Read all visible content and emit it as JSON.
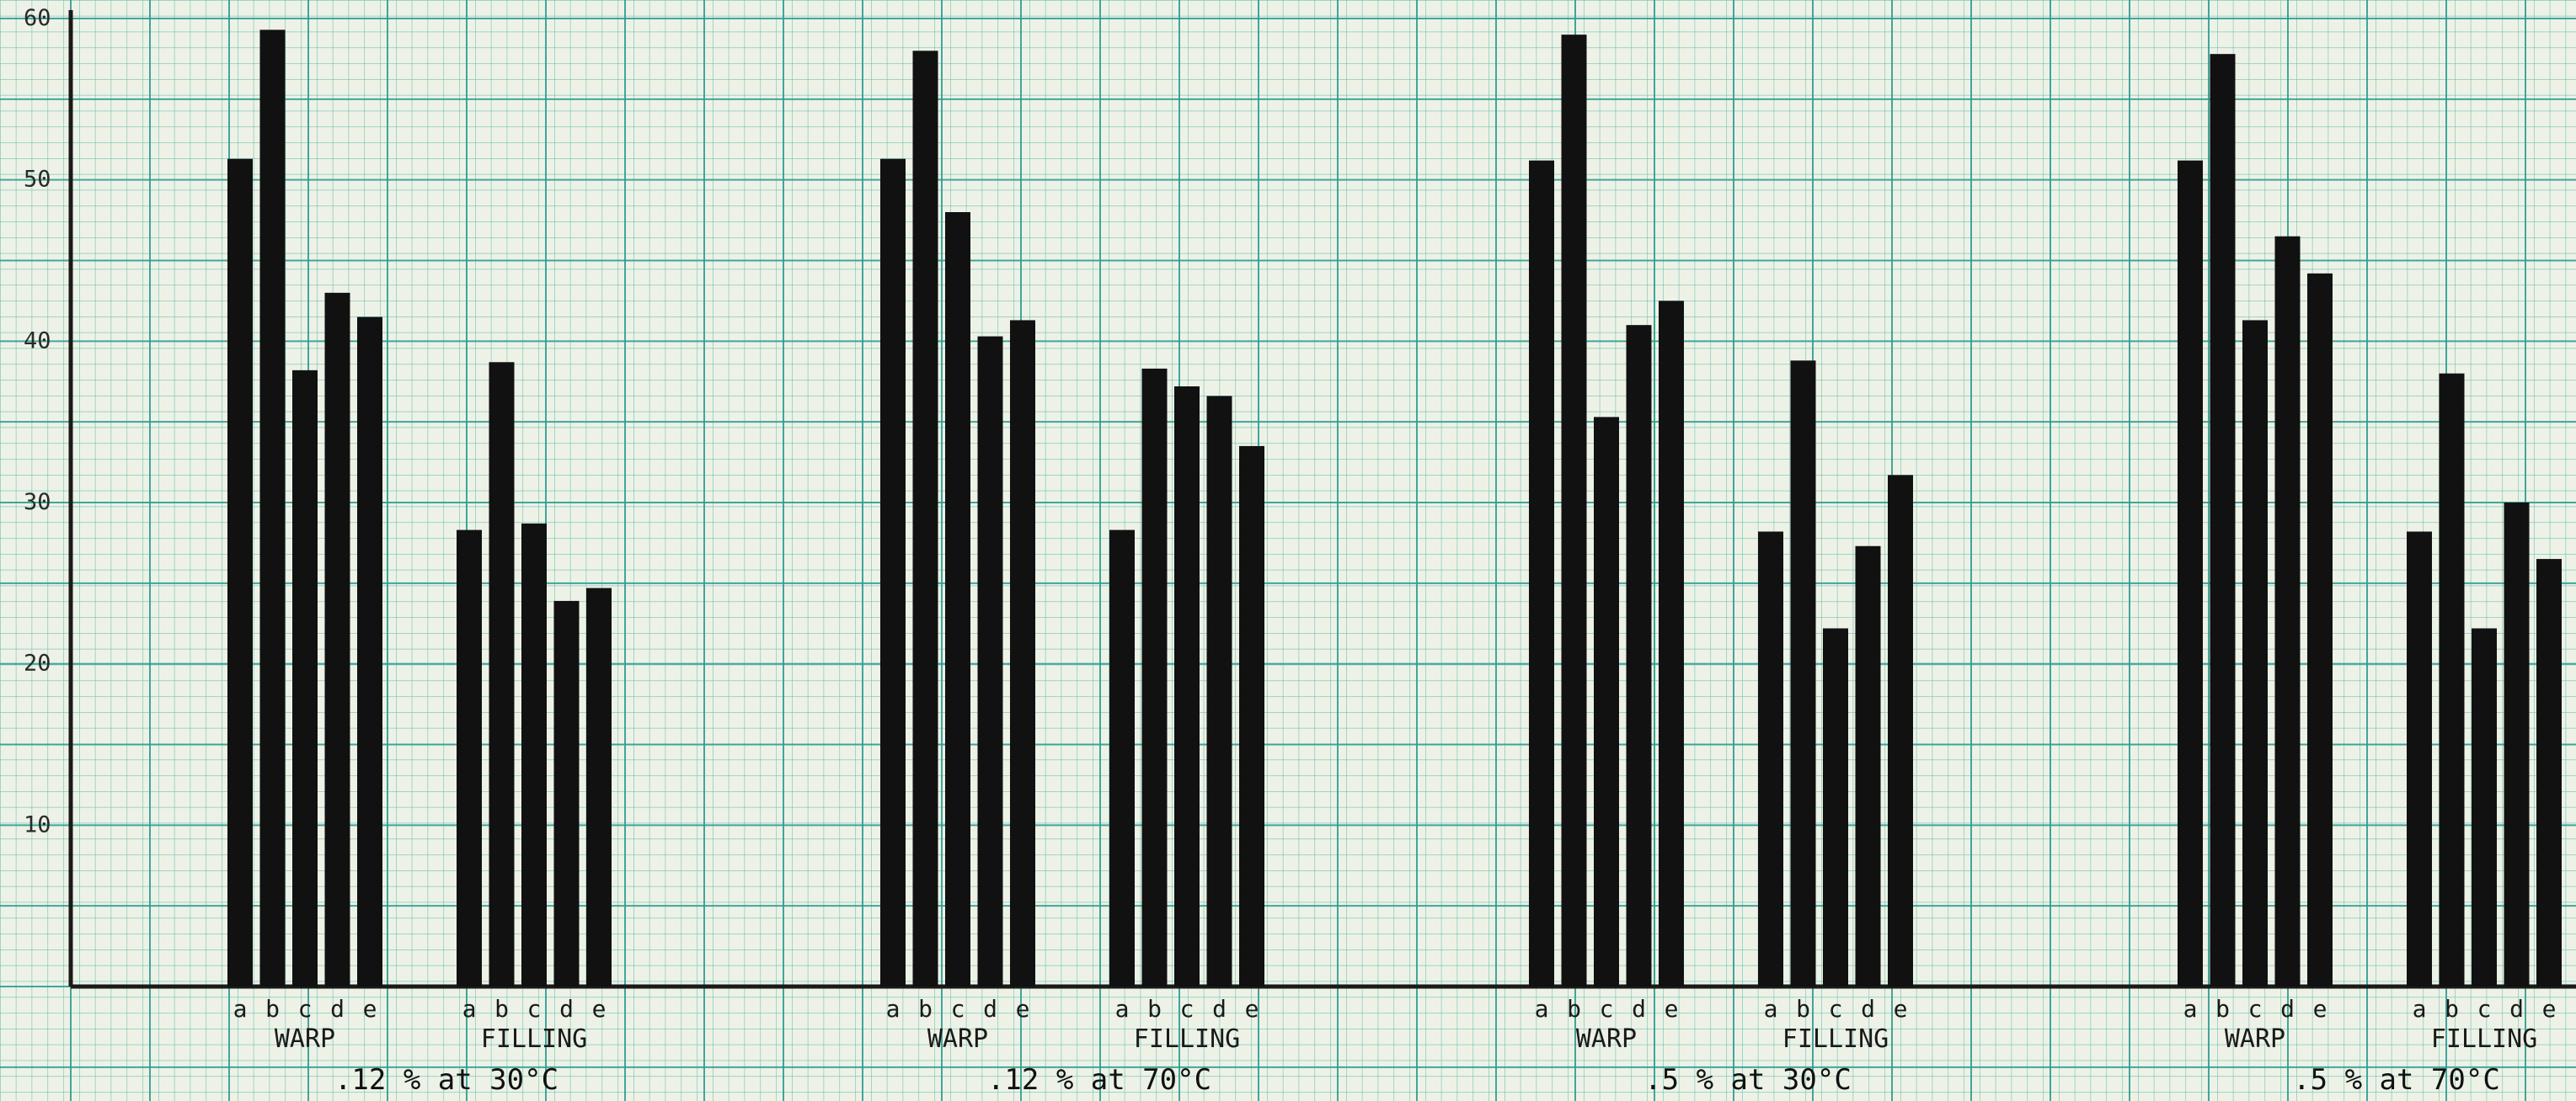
{
  "chart_data": {
    "type": "bar",
    "title": "",
    "xlabel": "",
    "ylabel": "",
    "ylim": [
      0,
      60
    ],
    "yticks": [
      "10",
      "20",
      "30",
      "40",
      "50",
      "60"
    ],
    "grid": true,
    "bar_color": "#111111",
    "grid_color": "#2e9e93",
    "bar_labels": [
      "a",
      "b",
      "c",
      "d",
      "e"
    ],
    "conditions": [
      {
        "label": ".12 % at 30°C",
        "groups": [
          {
            "label": "WARP",
            "values": [
              51.3,
              59.3,
              38.2,
              43.0,
              41.5
            ]
          },
          {
            "label": "FILLING",
            "values": [
              28.3,
              38.7,
              28.7,
              23.9,
              24.7
            ]
          }
        ]
      },
      {
        "label": ".12 % at 70°C",
        "groups": [
          {
            "label": "WARP",
            "values": [
              51.3,
              58.0,
              48.0,
              40.3,
              41.3
            ]
          },
          {
            "label": "FILLING",
            "values": [
              28.3,
              38.3,
              37.2,
              36.6,
              33.5
            ]
          }
        ]
      },
      {
        "label": ".5 % at 30°C",
        "groups": [
          {
            "label": "WARP",
            "values": [
              51.2,
              59.0,
              35.3,
              41.0,
              42.5
            ]
          },
          {
            "label": "FILLING",
            "values": [
              28.2,
              38.8,
              22.2,
              27.3,
              31.7
            ]
          }
        ]
      },
      {
        "label": ".5 % at 70°C",
        "groups": [
          {
            "label": "WARP",
            "values": [
              51.2,
              57.8,
              41.3,
              46.5,
              44.2
            ]
          },
          {
            "label": "FILLING",
            "values": [
              28.2,
              38.0,
              22.2,
              30.0,
              26.5
            ]
          }
        ]
      }
    ]
  }
}
